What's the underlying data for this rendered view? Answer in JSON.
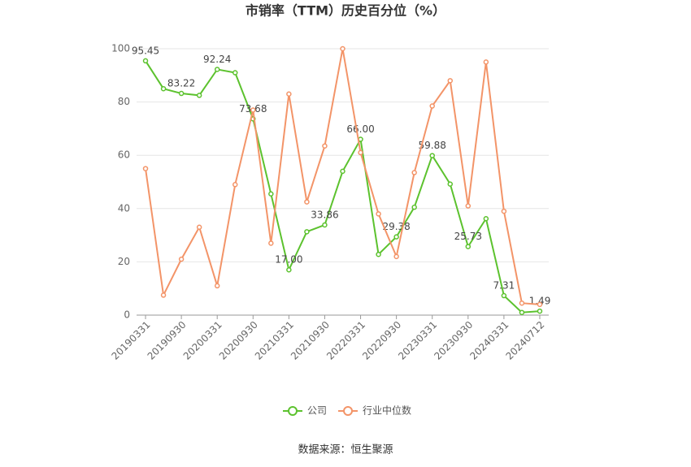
{
  "chart_data": {
    "type": "line",
    "title": "市销率（TTM）历史百分位（%）",
    "categories": [
      "20190331",
      null,
      "20190930",
      null,
      "20200331",
      null,
      "20200930",
      null,
      "20210331",
      null,
      "20210930",
      null,
      "20220331",
      null,
      "20220930",
      null,
      "20230331",
      null,
      "20230930",
      null,
      "20240331",
      null,
      "20240712"
    ],
    "series": [
      {
        "name": "公司",
        "color": "#5cc22e",
        "values": [
          95.45,
          85,
          83.22,
          82.5,
          92.24,
          91,
          73.68,
          45.5,
          17,
          31.3,
          33.86,
          54,
          66,
          22.8,
          29.38,
          40.5,
          59.88,
          49.2,
          25.73,
          36.2,
          7.31,
          1.0,
          1.49
        ],
        "value_labels": [
          "95.45",
          null,
          "83.22",
          null,
          "92.24",
          null,
          "73.68",
          null,
          "17.00",
          null,
          "33.86",
          null,
          "66.00",
          null,
          "29.38",
          null,
          "59.88",
          null,
          "25.73",
          null,
          "7.31",
          null,
          "1.49"
        ]
      },
      {
        "name": "行业中位数",
        "color": "#f39468",
        "values": [
          55,
          7.5,
          21,
          33,
          11,
          49,
          77,
          27,
          83,
          42.5,
          63.5,
          100,
          61,
          38,
          22,
          53.5,
          78.5,
          88,
          41,
          95,
          39,
          4.5,
          4
        ]
      }
    ],
    "ylim": [
      0,
      100
    ],
    "yticks": [
      0,
      20,
      40,
      60,
      80,
      100
    ],
    "grid": true,
    "legend": "bottom",
    "source": "数据来源：恒生聚源"
  }
}
